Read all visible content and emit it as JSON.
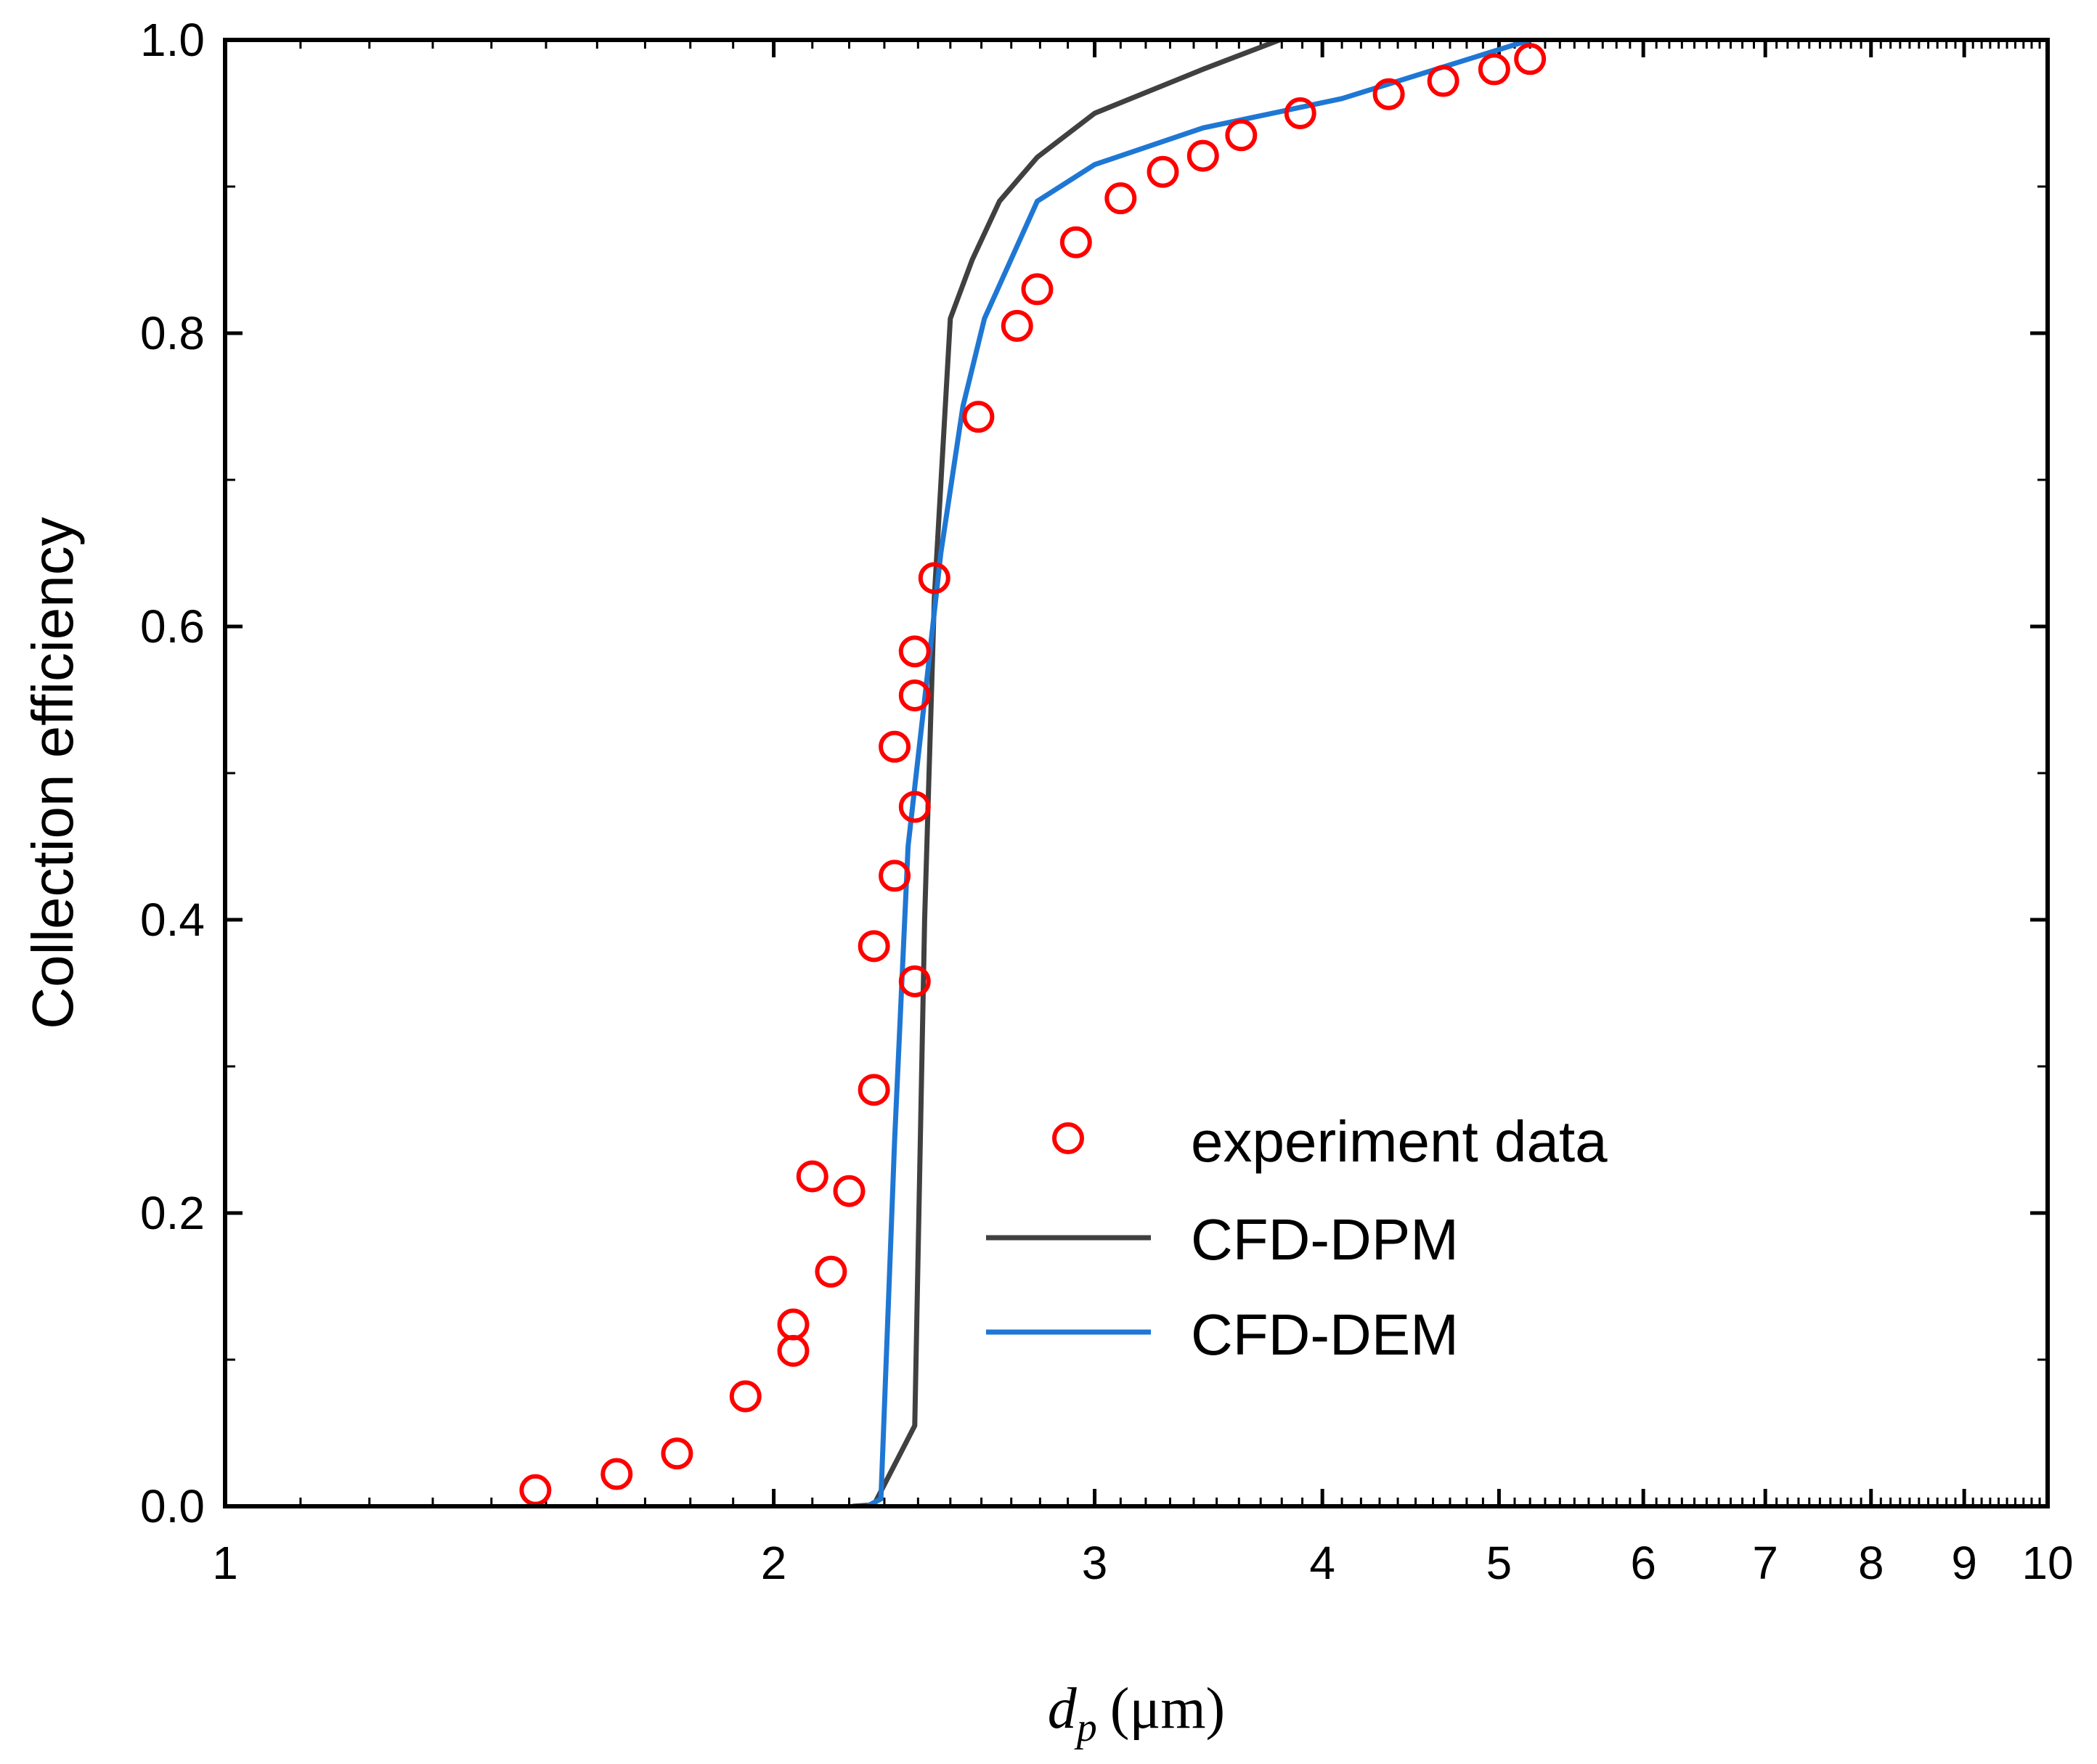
{
  "chart_data": {
    "type": "line",
    "x_scale": "log",
    "xlabel": {
      "var": "d",
      "sub": "p",
      "unit": "(μm)"
    },
    "ylabel": "Collection efficiency",
    "xlim": [
      1,
      10
    ],
    "ylim": [
      0,
      1
    ],
    "x_ticks": [
      1,
      2,
      3,
      4,
      5,
      6,
      7,
      8,
      9,
      10
    ],
    "y_ticks": [
      0.0,
      0.2,
      0.4,
      0.6,
      0.8,
      1.0
    ],
    "y_tick_labels": [
      "0.0",
      "0.2",
      "0.4",
      "0.6",
      "0.8",
      "1.0"
    ],
    "legend_position": "lower-right",
    "series": [
      {
        "name": "experiment data",
        "kind": "scatter",
        "color": "#ff0000",
        "points": [
          [
            1.48,
            0.011
          ],
          [
            1.64,
            0.022
          ],
          [
            1.77,
            0.036
          ],
          [
            1.93,
            0.075
          ],
          [
            2.05,
            0.106
          ],
          [
            2.05,
            0.124
          ],
          [
            2.1,
            0.225
          ],
          [
            2.15,
            0.16
          ],
          [
            2.2,
            0.215
          ],
          [
            2.27,
            0.284
          ],
          [
            2.27,
            0.382
          ],
          [
            2.33,
            0.43
          ],
          [
            2.33,
            0.518
          ],
          [
            2.39,
            0.358
          ],
          [
            2.39,
            0.477
          ],
          [
            2.39,
            0.553
          ],
          [
            2.39,
            0.583
          ],
          [
            2.45,
            0.633
          ],
          [
            2.59,
            0.743
          ],
          [
            2.72,
            0.805
          ],
          [
            2.79,
            0.83
          ],
          [
            2.93,
            0.862
          ],
          [
            3.1,
            0.892
          ],
          [
            3.27,
            0.91
          ],
          [
            3.44,
            0.921
          ],
          [
            3.61,
            0.935
          ],
          [
            3.89,
            0.95
          ],
          [
            4.35,
            0.963
          ],
          [
            4.66,
            0.972
          ],
          [
            4.97,
            0.98
          ],
          [
            5.2,
            0.987
          ]
        ]
      },
      {
        "name": "CFD-DPM",
        "kind": "line",
        "color": "#404040",
        "points": [
          [
            2.21,
            0.0
          ],
          [
            2.27,
            0.001
          ],
          [
            2.39,
            0.055
          ],
          [
            2.42,
            0.4
          ],
          [
            2.45,
            0.62
          ],
          [
            2.5,
            0.81
          ],
          [
            2.57,
            0.85
          ],
          [
            2.66,
            0.89
          ],
          [
            2.79,
            0.92
          ],
          [
            3.0,
            0.95
          ],
          [
            3.44,
            0.98
          ],
          [
            3.79,
            1.0
          ]
        ]
      },
      {
        "name": "CFD-DEM",
        "kind": "line",
        "color": "#1f77d4",
        "points": [
          [
            2.25,
            0.0
          ],
          [
            2.29,
            0.005
          ],
          [
            2.33,
            0.25
          ],
          [
            2.37,
            0.45
          ],
          [
            2.43,
            0.57
          ],
          [
            2.47,
            0.65
          ],
          [
            2.54,
            0.75
          ],
          [
            2.61,
            0.81
          ],
          [
            2.79,
            0.89
          ],
          [
            3.0,
            0.915
          ],
          [
            3.44,
            0.94
          ],
          [
            4.1,
            0.96
          ],
          [
            5.2,
            1.0
          ]
        ]
      }
    ]
  }
}
